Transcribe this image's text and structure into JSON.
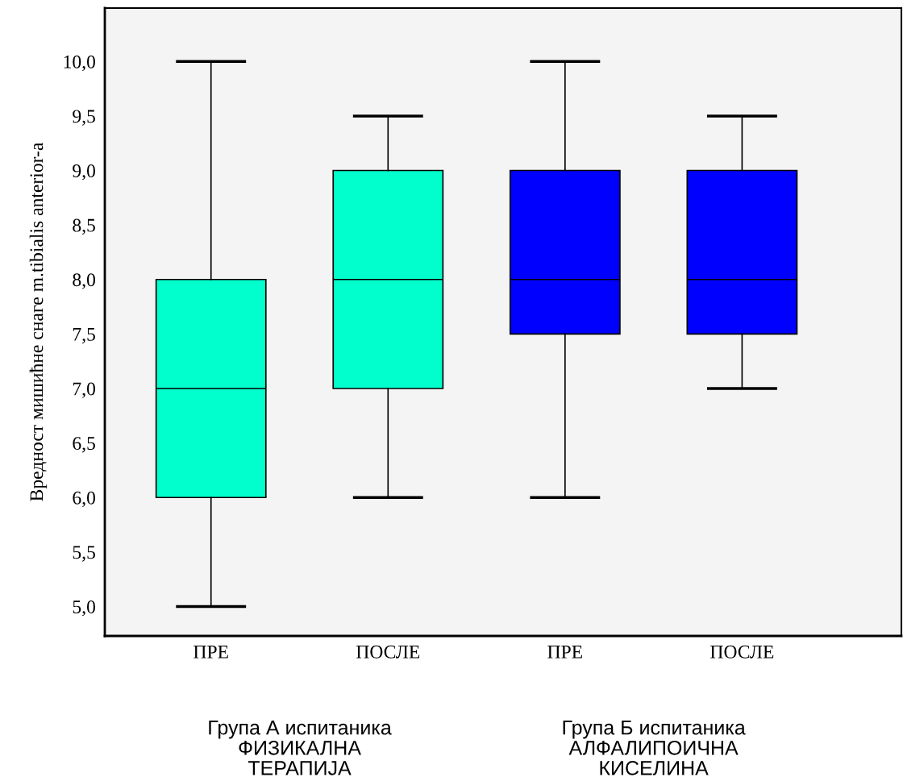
{
  "chart_data": {
    "type": "box",
    "ylabel": "Вредност мишићне снаге m.tibialis anterior-a",
    "categories": [
      "ПРЕ",
      "ПОСЛЕ",
      "ПРЕ",
      "ПОСЛЕ"
    ],
    "boxes": [
      {
        "low": 5,
        "q1": 6,
        "median": 7,
        "q3": 8,
        "high": 10
      },
      {
        "low": 6,
        "q1": 7,
        "median": 8,
        "q3": 9,
        "high": 9.5
      },
      {
        "low": 6,
        "q1": 7.5,
        "median": 8,
        "q3": 9,
        "high": 10
      },
      {
        "low": 7,
        "q1": 7.5,
        "median": 8,
        "q3": 9,
        "high": 9.5
      }
    ],
    "colors": [
      "#00ffcc",
      "#00ffcc",
      "#0000ff",
      "#0000ff"
    ],
    "ylim": [
      4.73,
      10.49
    ],
    "yticks": [
      {
        "value": 5,
        "label": "5,0"
      },
      {
        "value": 5.5,
        "label": "5,5"
      },
      {
        "value": 6,
        "label": "6,0"
      },
      {
        "value": 6.5,
        "label": "6,5"
      },
      {
        "value": 7,
        "label": "7,0"
      },
      {
        "value": 7.5,
        "label": "7,5"
      },
      {
        "value": 8,
        "label": "8,0"
      },
      {
        "value": 8.5,
        "label": "8,5"
      },
      {
        "value": 9,
        "label": "9,0"
      },
      {
        "value": 9.5,
        "label": "9,5"
      },
      {
        "value": 10,
        "label": "10,0"
      }
    ],
    "annotations": [
      "Група А испитаника\nФИЗИКАЛНА\nТЕРАПИЈА",
      "Група Б испитаника\nАЛФАЛИПОИЧНА\nКИСЕЛИНА"
    ],
    "grid": false
  }
}
